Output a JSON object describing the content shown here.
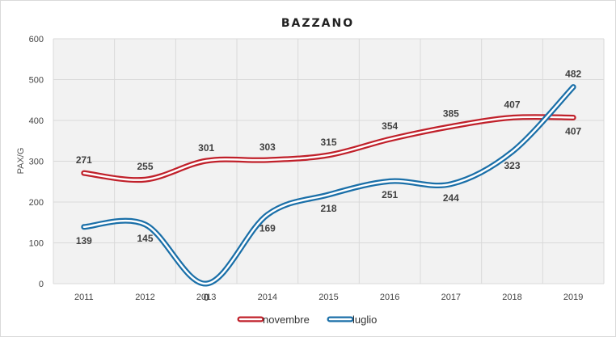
{
  "chart_data": {
    "type": "line",
    "title": "BAZZANO",
    "ylabel": "PAX/G",
    "xlabel": "",
    "x": [
      "2011",
      "2012",
      "2013",
      "2014",
      "2015",
      "2016",
      "2017",
      "2018",
      "2019"
    ],
    "ylim": [
      0,
      600
    ],
    "yticks": [
      0,
      100,
      200,
      300,
      400,
      500,
      600
    ],
    "grid": true,
    "legend_position": "bottom",
    "smooth": true,
    "series": [
      {
        "name": "novembre",
        "color": "#c0202a",
        "values": [
          271,
          255,
          301,
          303,
          315,
          354,
          385,
          407,
          407
        ]
      },
      {
        "name": "luglio",
        "color": "#1a6fa8",
        "values": [
          139,
          145,
          0,
          169,
          218,
          251,
          244,
          323,
          482
        ]
      }
    ]
  }
}
